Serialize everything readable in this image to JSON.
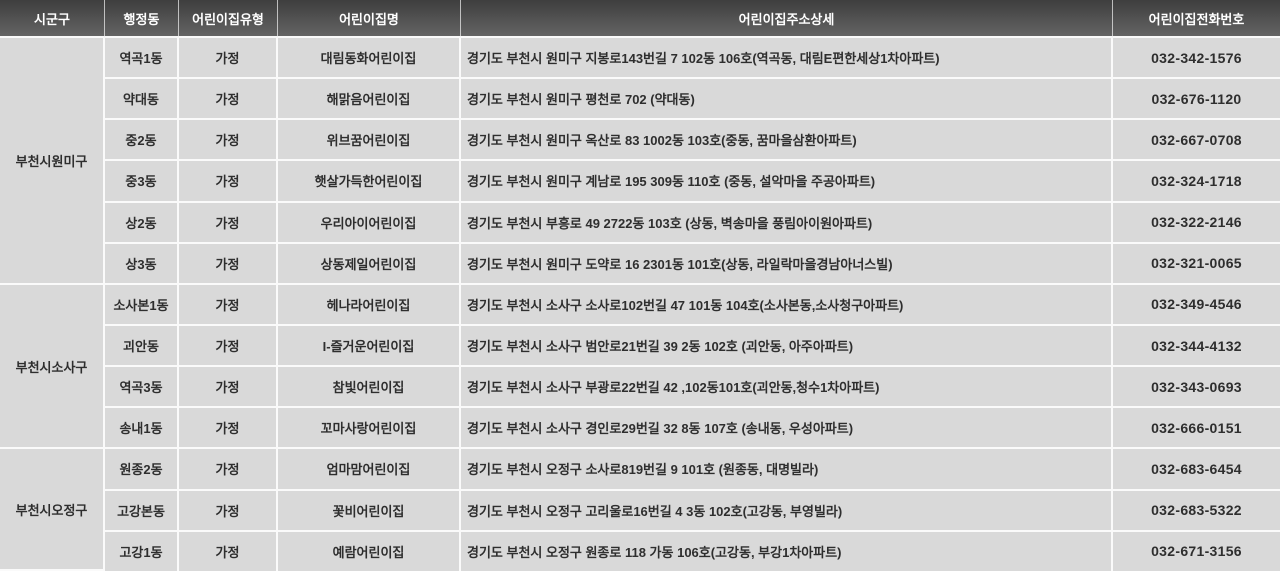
{
  "colors": {
    "header_bg_top": "#3e3e3e",
    "header_bg_bottom": "#646464",
    "header_text": "#ffffff",
    "row_bg": "#d9d9d9",
    "separator": "#fafafa",
    "body_text": "#2e2e2e"
  },
  "table": {
    "columns": [
      "시군구",
      "행정동",
      "어린이집유형",
      "어린이집명",
      "어린이집주소상세",
      "어린이집전화번호"
    ],
    "groups": [
      {
        "sigungu": "부천시원미구",
        "rows": [
          {
            "dong": "역곡1동",
            "type": "가정",
            "name": "대림동화어린이집",
            "address": "경기도 부천시 원미구 지봉로143번길 7 102동 106호(역곡동, 대림E편한세상1차아파트)",
            "phone": "032-342-1576"
          },
          {
            "dong": "약대동",
            "type": "가정",
            "name": "해맑음어린이집",
            "address": "경기도 부천시 원미구 평천로 702 (약대동)",
            "phone": "032-676-1120"
          },
          {
            "dong": "중2동",
            "type": "가정",
            "name": "위브꿈어린이집",
            "address": "경기도 부천시 원미구 옥산로 83 1002동 103호(중동, 꿈마을삼환아파트)",
            "phone": "032-667-0708"
          },
          {
            "dong": "중3동",
            "type": "가정",
            "name": "햇살가득한어린이집",
            "address": "경기도 부천시 원미구 계남로 195 309동 110호 (중동, 설악마을 주공아파트)",
            "phone": "032-324-1718"
          },
          {
            "dong": "상2동",
            "type": "가정",
            "name": "우리아이어린이집",
            "address": "경기도 부천시 부흥로 49 2722동 103호 (상동, 벽송마을 풍림아이원아파트)",
            "phone": "032-322-2146"
          },
          {
            "dong": "상3동",
            "type": "가정",
            "name": "상동제일어린이집",
            "address": "경기도 부천시 원미구 도약로 16 2301동 101호(상동, 라일락마을경남아너스빌)",
            "phone": "032-321-0065"
          }
        ]
      },
      {
        "sigungu": "부천시소사구",
        "rows": [
          {
            "dong": "소사본1동",
            "type": "가정",
            "name": "헤나라어린이집",
            "address": "경기도 부천시 소사구 소사로102번길 47 101동 104호(소사본동,소사청구아파트)",
            "phone": "032-349-4546"
          },
          {
            "dong": "괴안동",
            "type": "가정",
            "name": "I-즐거운어린이집",
            "address": "경기도 부천시 소사구 범안로21번길 39 2동 102호 (괴안동, 아주아파트)",
            "phone": "032-344-4132"
          },
          {
            "dong": "역곡3동",
            "type": "가정",
            "name": "참빛어린이집",
            "address": "경기도 부천시 소사구 부광로22번길 42 ,102동101호(괴안동,청수1차아파트)",
            "phone": "032-343-0693"
          },
          {
            "dong": "송내1동",
            "type": "가정",
            "name": "꼬마사랑어린이집",
            "address": "경기도 부천시 소사구 경인로29번길 32 8동 107호 (송내동, 우성아파트)",
            "phone": "032-666-0151"
          }
        ]
      },
      {
        "sigungu": "부천시오정구",
        "rows": [
          {
            "dong": "원종2동",
            "type": "가정",
            "name": "엄마맘어린이집",
            "address": "경기도 부천시 오정구 소사로819번길 9 101호 (원종동, 대명빌라)",
            "phone": "032-683-6454"
          },
          {
            "dong": "고강본동",
            "type": "가정",
            "name": "꽃비어린이집",
            "address": "경기도 부천시 오정구 고리울로16번길 4 3동 102호(고강동, 부영빌라)",
            "phone": "032-683-5322"
          },
          {
            "dong": "고강1동",
            "type": "가정",
            "name": "예람어린이집",
            "address": "경기도 부천시 오정구 원종로 118 가동 106호(고강동, 부강1차아파트)",
            "phone": "032-671-3156"
          }
        ]
      }
    ]
  }
}
